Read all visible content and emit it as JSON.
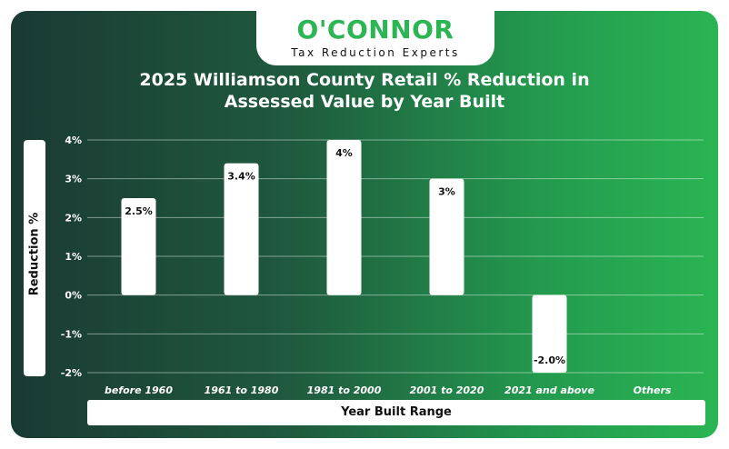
{
  "brand": {
    "name": "O'CONNOR",
    "tagline": "Tax Reduction Experts"
  },
  "colors": {
    "brand_green": "#2bb553",
    "background_dark": "#1a3a33",
    "bar": "#ffffff"
  },
  "chart_data": {
    "type": "bar",
    "title": "2025 Williamson County Retail % Reduction in Assessed Value by Year Built",
    "title_lines": [
      "2025 Williamson County Retail % Reduction in",
      "Assessed Value by Year Built"
    ],
    "xlabel": "Year Built Range",
    "ylabel": "Reduction %",
    "categories": [
      "before 1960",
      "1961 to 1980",
      "1981 to 2000",
      "2001 to 2020",
      "2021 and above",
      "Others"
    ],
    "values": [
      2.5,
      3.4,
      4.0,
      3.0,
      -2.0,
      null
    ],
    "data_labels": [
      "2.5%",
      "3.4%",
      "4%",
      "3%",
      "-2.0%",
      ""
    ],
    "ylim": [
      -2,
      4
    ],
    "yticks": [
      4,
      3,
      2,
      1,
      0,
      -1,
      -2
    ],
    "ytick_labels": [
      "4%",
      "3%",
      "2%",
      "1%",
      "0%",
      "-1%",
      "-2%"
    ],
    "grid": true,
    "legend": "none"
  }
}
